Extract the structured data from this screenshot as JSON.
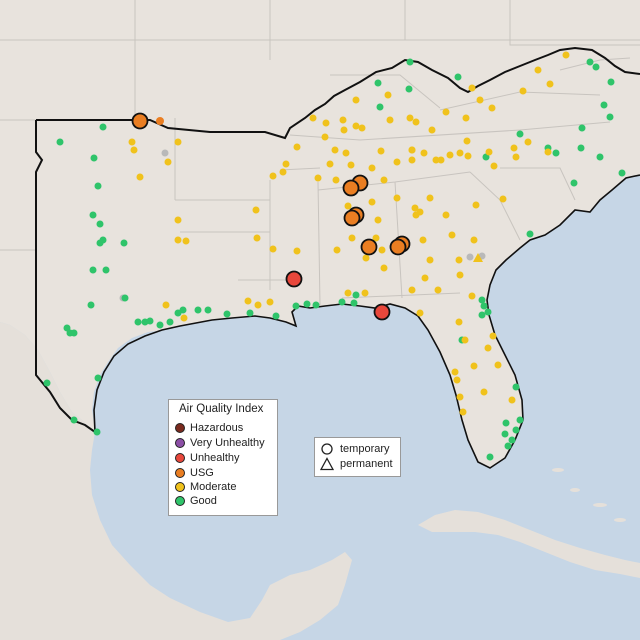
{
  "colors": {
    "land": "#e8e3dd",
    "water": "#c6d6e6",
    "state_line": "#c8c4bf",
    "region_outline": "#111111",
    "Hazardous": "#7a2a1e",
    "Very Unhealthy": "#8c4fa6",
    "Unhealthy": "#e8473b",
    "USG": "#ea7e22",
    "Moderate": "#f0c21c",
    "Good": "#2fc46a",
    "gray": "#b9b9b9"
  },
  "aqi_legend": {
    "title": "Air Quality Index",
    "items": [
      {
        "label": "Hazardous",
        "color": "#7a2a1e"
      },
      {
        "label": "Very Unhealthy",
        "color": "#8c4fa6"
      },
      {
        "label": "Unhealthy",
        "color": "#e8473b"
      },
      {
        "label": "USG",
        "color": "#ea7e22"
      },
      {
        "label": "Moderate",
        "color": "#f0c21c"
      },
      {
        "label": "Good",
        "color": "#2fc46a"
      }
    ]
  },
  "type_legend": {
    "items": [
      {
        "label": "temporary",
        "symbol": "circle"
      },
      {
        "label": "permanent",
        "symbol": "triangle"
      }
    ]
  }
}
